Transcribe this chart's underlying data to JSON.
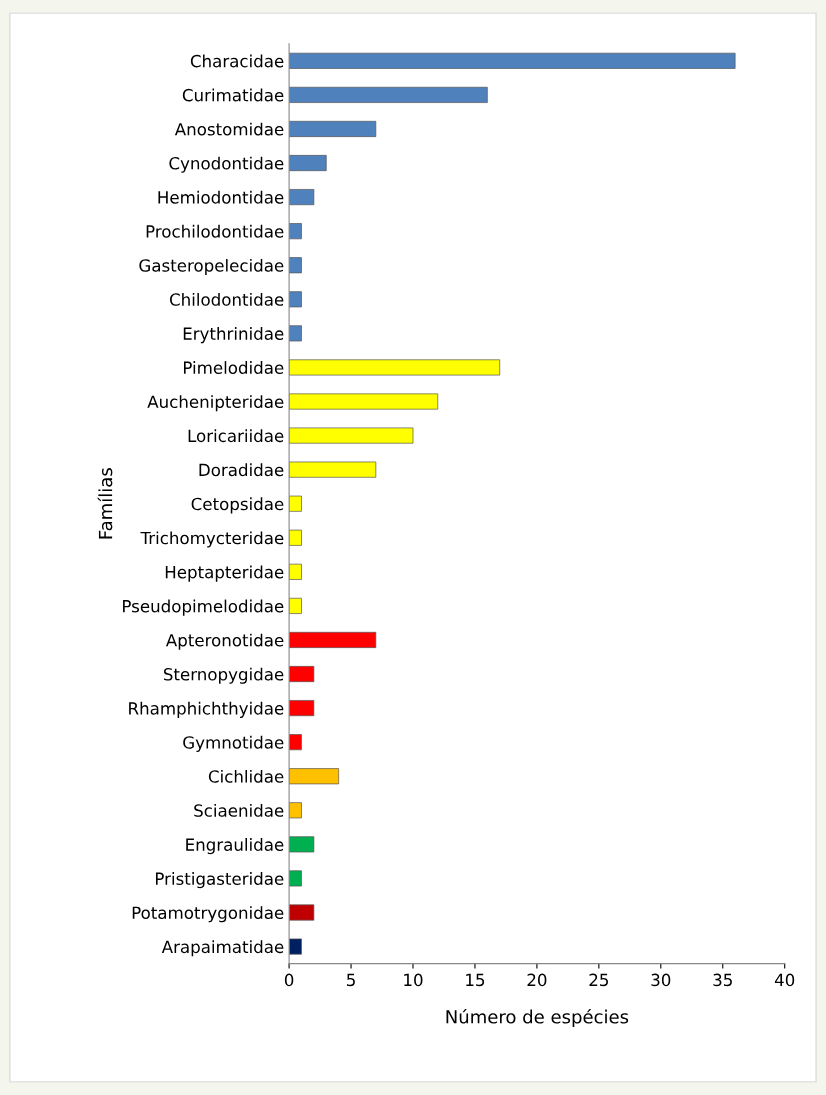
{
  "chart_data": {
    "type": "bar",
    "orientation": "horizontal",
    "xlabel": "Número de espécies",
    "ylabel": "Famílias",
    "categories": [
      "Characidae",
      "Curimatidae",
      "Anostomidae",
      "Cynodontidae",
      "Hemiodontidae",
      "Prochilodontidae",
      "Gasteropelecidae",
      "Chilodontidae",
      "Erythrinidae",
      "Pimelodidae",
      "Auchenipteridae",
      "Loricariidae",
      "Doradidae",
      "Cetopsidae",
      "Trichomycteridae",
      "Heptapteridae",
      "Pseudopimelodidae",
      "Apteronotidae",
      "Sternopygidae",
      "Rhamphichthyidae",
      "Gymnotidae",
      "Cichlidae",
      "Sciaenidae",
      "Engraulidae",
      "Pristigasteridae",
      "Potamotrygonidae",
      "Arapaimatidae"
    ],
    "values": [
      36,
      16,
      7,
      3,
      2,
      1,
      1,
      1,
      1,
      17,
      12,
      10,
      7,
      1,
      1,
      1,
      1,
      7,
      2,
      2,
      1,
      4,
      1,
      2,
      1,
      2,
      1
    ],
    "colors": [
      "#4f81bd",
      "#4f81bd",
      "#4f81bd",
      "#4f81bd",
      "#4f81bd",
      "#4f81bd",
      "#4f81bd",
      "#4f81bd",
      "#4f81bd",
      "#ffff00",
      "#ffff00",
      "#ffff00",
      "#ffff00",
      "#ffff00",
      "#ffff00",
      "#ffff00",
      "#ffff00",
      "#ff0000",
      "#ff0000",
      "#ff0000",
      "#ff0000",
      "#ffc000",
      "#ffc000",
      "#00b050",
      "#00b050",
      "#c00000",
      "#002060"
    ],
    "xlim": [
      0,
      40
    ],
    "xticks": [
      0,
      5,
      10,
      15,
      20,
      25,
      30,
      35,
      40
    ],
    "grid": false,
    "legend": false
  }
}
